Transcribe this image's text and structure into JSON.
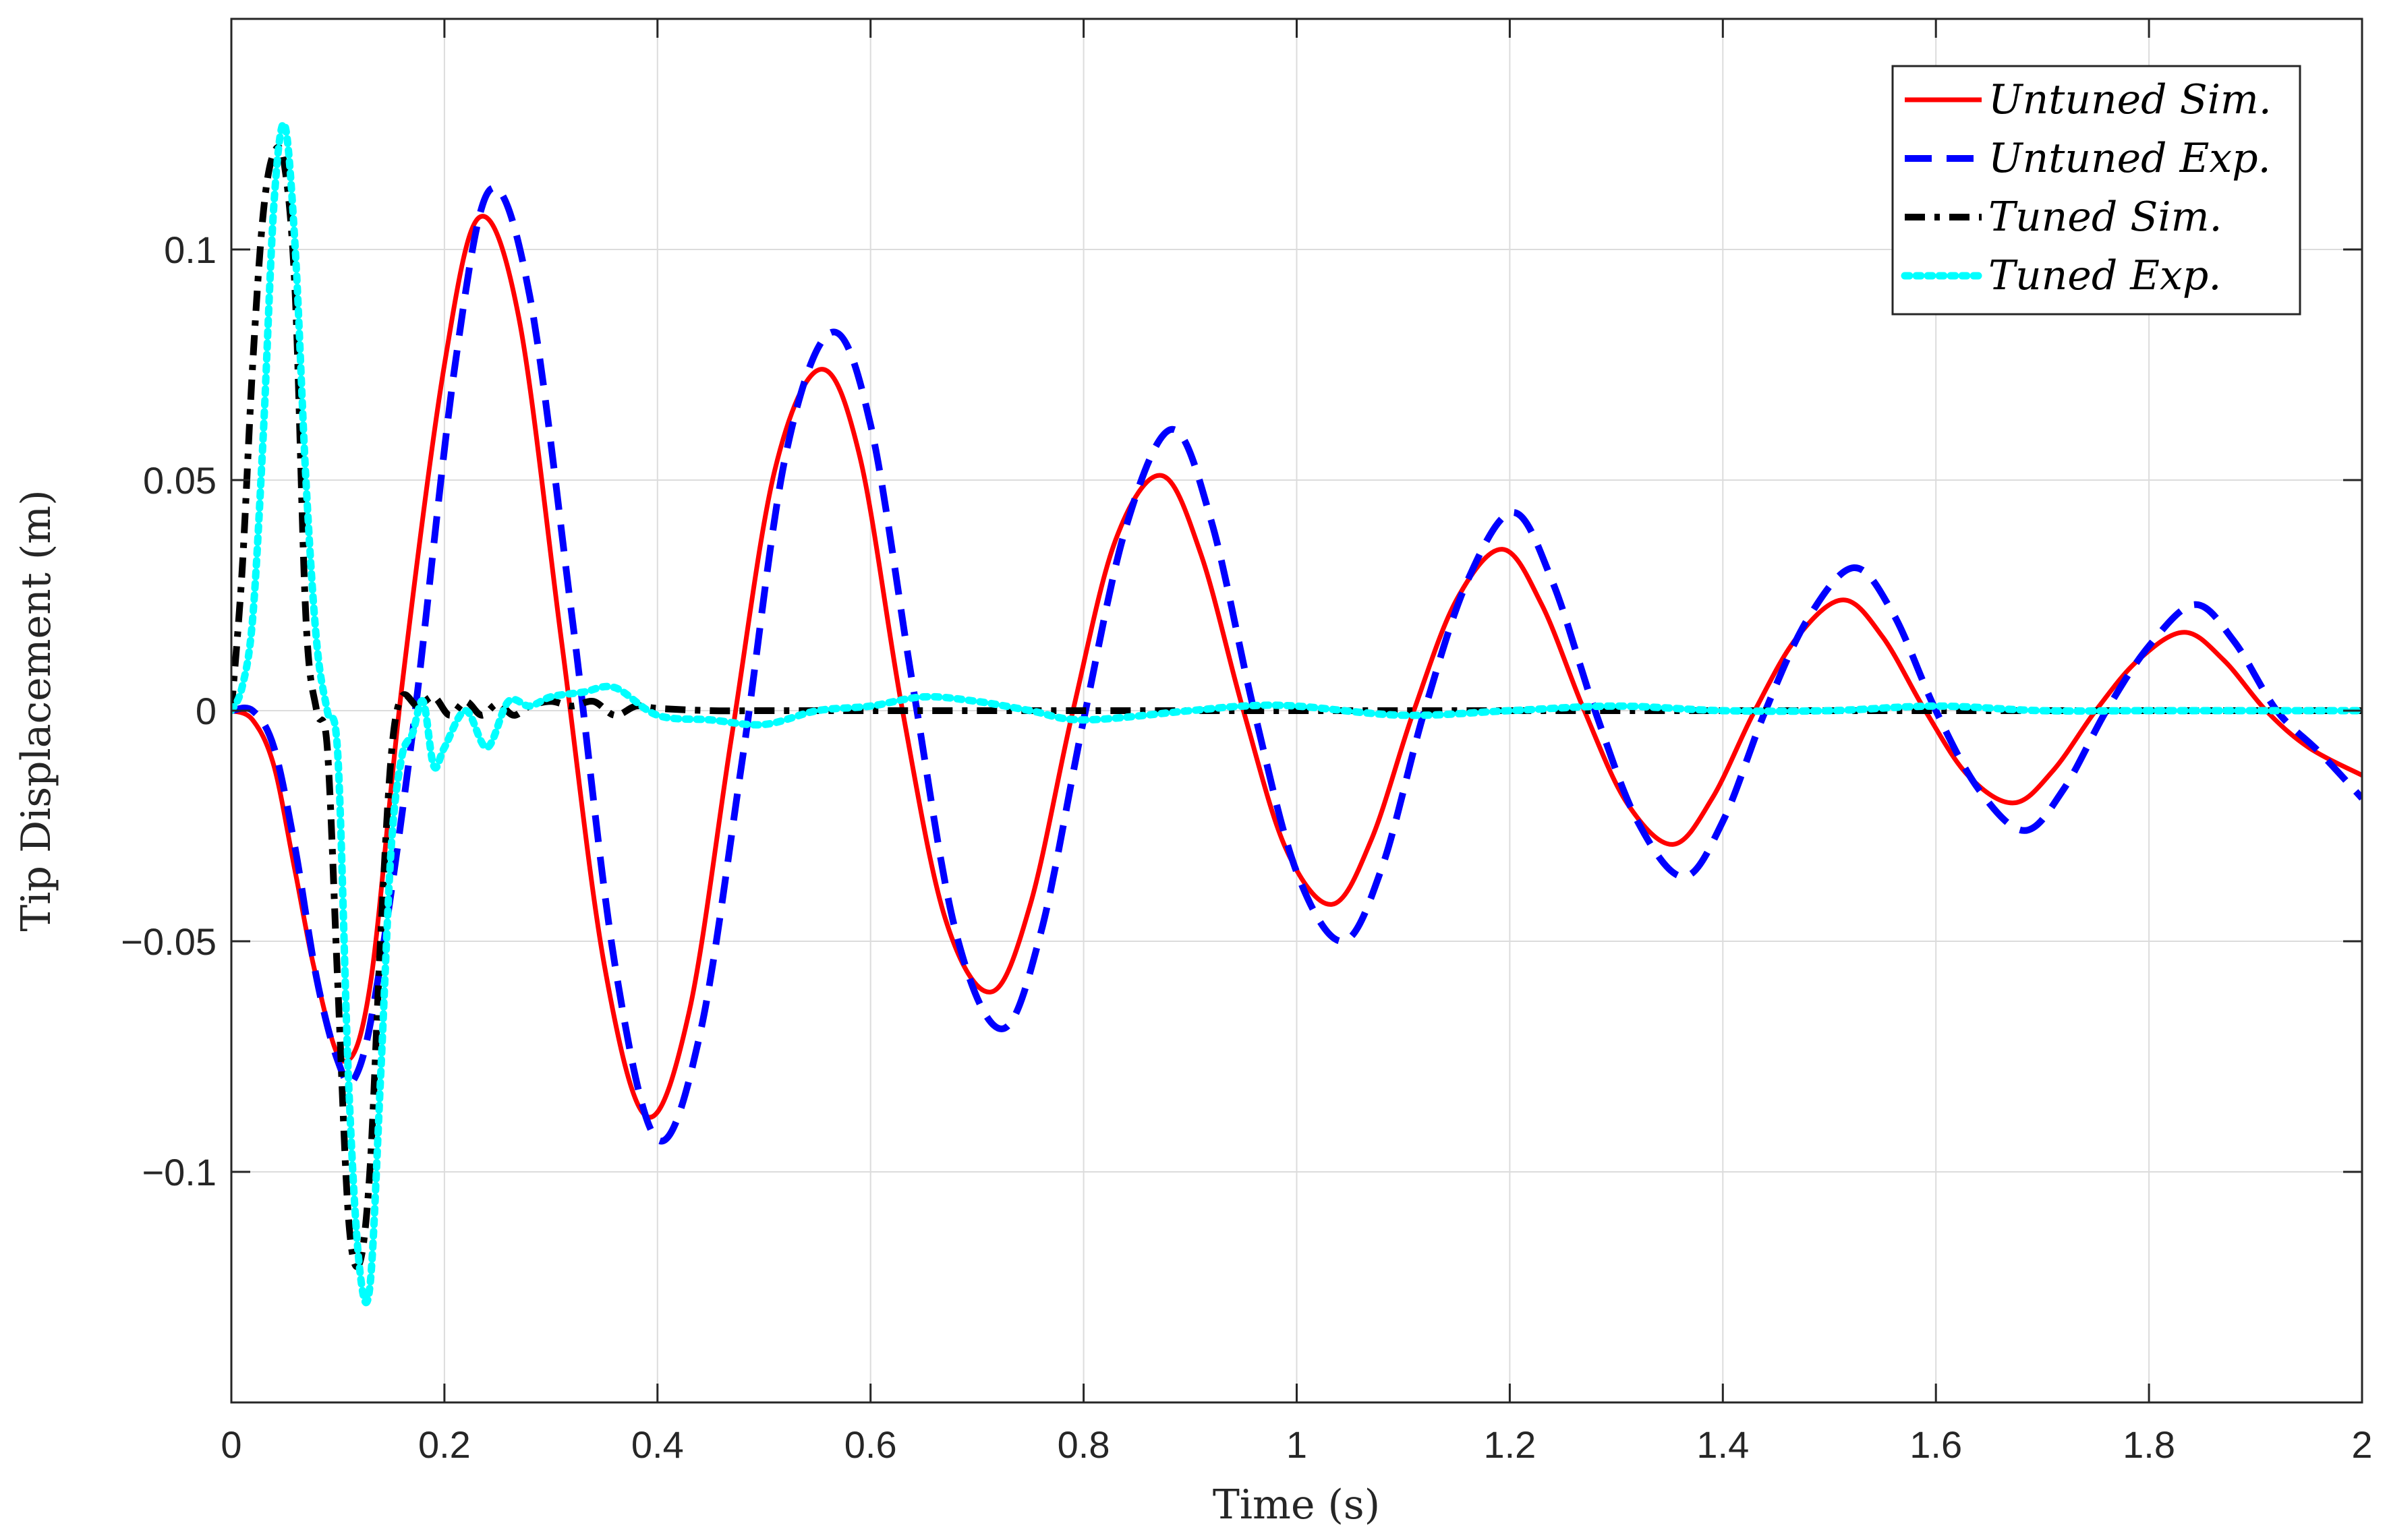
{
  "chart_data": {
    "type": "line",
    "xlabel": "Time (s)",
    "ylabel": "Tip Displacement (m)",
    "xlim": [
      0,
      2
    ],
    "ylim": [
      -0.15,
      0.15
    ],
    "grid": true,
    "legend_position": "top-right",
    "x_ticks": [
      0,
      0.2,
      0.4,
      0.6,
      0.8,
      1,
      1.2,
      1.4,
      1.6,
      1.8,
      2
    ],
    "x_tick_labels": [
      "0",
      "0.2",
      "0.4",
      "0.6",
      "0.8",
      "1",
      "1.2",
      "1.4",
      "1.6",
      "1.8",
      "2"
    ],
    "y_ticks": [
      -0.1,
      -0.05,
      0,
      0.05,
      0.1
    ],
    "y_tick_labels": [
      "−0.1",
      "−0.05",
      "0",
      "0.05",
      "0.1"
    ],
    "series": [
      {
        "name": "Untuned Sim.",
        "color": "#ff0000",
        "style": "solid",
        "x": [
          0,
          0.02,
          0.04,
          0.06,
          0.08,
          0.105,
          0.13,
          0.16,
          0.2,
          0.233,
          0.27,
          0.31,
          0.35,
          0.39,
          0.43,
          0.47,
          0.51,
          0.553,
          0.59,
          0.63,
          0.67,
          0.713,
          0.75,
          0.79,
          0.83,
          0.873,
          0.91,
          0.95,
          0.99,
          1.033,
          1.07,
          1.11,
          1.15,
          1.193,
          1.23,
          1.27,
          1.31,
          1.353,
          1.39,
          1.43,
          1.47,
          1.513,
          1.55,
          1.59,
          1.63,
          1.673,
          1.71,
          1.75,
          1.79,
          1.833,
          1.87,
          1.91,
          1.95,
          2.0
        ],
        "y": [
          0,
          -0.002,
          -0.012,
          -0.035,
          -0.058,
          -0.076,
          -0.06,
          0.005,
          0.075,
          0.107,
          0.085,
          0.015,
          -0.055,
          -0.088,
          -0.065,
          -0.005,
          0.052,
          0.074,
          0.055,
          0.0,
          -0.045,
          -0.061,
          -0.042,
          0.0,
          0.037,
          0.051,
          0.034,
          0.0,
          -0.03,
          -0.042,
          -0.028,
          0.0,
          0.024,
          0.035,
          0.023,
          0.0,
          -0.02,
          -0.029,
          -0.019,
          0.0,
          0.016,
          0.024,
          0.016,
          0.0,
          -0.014,
          -0.02,
          -0.013,
          0.0,
          0.011,
          0.017,
          0.011,
          0.0,
          -0.008,
          -0.014
        ]
      },
      {
        "name": "Untuned Exp.",
        "color": "#0000ff",
        "style": "dashed",
        "x": [
          0,
          0.02,
          0.04,
          0.06,
          0.08,
          0.1,
          0.115,
          0.135,
          0.17,
          0.21,
          0.243,
          0.28,
          0.32,
          0.36,
          0.4,
          0.44,
          0.48,
          0.52,
          0.563,
          0.6,
          0.64,
          0.68,
          0.723,
          0.76,
          0.8,
          0.84,
          0.883,
          0.92,
          0.96,
          1.0,
          1.043,
          1.08,
          1.12,
          1.16,
          1.203,
          1.24,
          1.28,
          1.32,
          1.363,
          1.4,
          1.44,
          1.48,
          1.523,
          1.56,
          1.6,
          1.64,
          1.683,
          1.72,
          1.76,
          1.8,
          1.843,
          1.88,
          1.92,
          1.96,
          2.0
        ],
        "y": [
          0,
          0.0,
          -0.008,
          -0.03,
          -0.058,
          -0.076,
          -0.08,
          -0.062,
          -0.005,
          0.075,
          0.113,
          0.09,
          0.02,
          -0.055,
          -0.093,
          -0.07,
          -0.01,
          0.055,
          0.082,
          0.062,
          0.005,
          -0.048,
          -0.069,
          -0.048,
          -0.002,
          0.04,
          0.061,
          0.041,
          0.0,
          -0.035,
          -0.05,
          -0.034,
          0.0,
          0.028,
          0.043,
          0.028,
          0.0,
          -0.024,
          -0.036,
          -0.024,
          0.0,
          0.02,
          0.031,
          0.021,
          0.0,
          -0.017,
          -0.026,
          -0.017,
          0.0,
          0.014,
          0.023,
          0.015,
          0.0,
          -0.009,
          -0.019
        ]
      },
      {
        "name": "Tuned Sim.",
        "color": "#000000",
        "style": "dashdot",
        "x": [
          0,
          0.01,
          0.02,
          0.03,
          0.04,
          0.05,
          0.06,
          0.07,
          0.08,
          0.09,
          0.1,
          0.11,
          0.12,
          0.13,
          0.14,
          0.15,
          0.16,
          0.175,
          0.19,
          0.205,
          0.22,
          0.235,
          0.25,
          0.265,
          0.28,
          0.3,
          0.32,
          0.34,
          0.36,
          0.38,
          0.4,
          0.45,
          0.5,
          0.55,
          0.6,
          0.7,
          0.8,
          0.9,
          1.0,
          1.2,
          1.4,
          1.6,
          1.8,
          2.0
        ],
        "y": [
          0,
          0.03,
          0.075,
          0.108,
          0.121,
          0.118,
          0.09,
          0.02,
          0.0,
          -0.008,
          -0.06,
          -0.11,
          -0.12,
          -0.1,
          -0.05,
          -0.01,
          0.003,
          0.001,
          0.003,
          -0.001,
          0.002,
          -0.001,
          0.0015,
          -0.001,
          0.001,
          0.002,
          0.001,
          0.002,
          -0.001,
          0.001,
          0.0005,
          0.0,
          0.0,
          0.0,
          0.0,
          0.0,
          0.0,
          0.0,
          0.0,
          0.0,
          0.0,
          0.0,
          0.0,
          0.0
        ]
      },
      {
        "name": "Tuned Exp.",
        "color": "#00ffff",
        "style": "dotted",
        "x": [
          0,
          0.01,
          0.02,
          0.03,
          0.04,
          0.05,
          0.06,
          0.07,
          0.08,
          0.09,
          0.1,
          0.11,
          0.12,
          0.13,
          0.14,
          0.15,
          0.16,
          0.17,
          0.18,
          0.19,
          0.2,
          0.22,
          0.24,
          0.26,
          0.28,
          0.3,
          0.33,
          0.36,
          0.4,
          0.45,
          0.5,
          0.55,
          0.6,
          0.65,
          0.7,
          0.75,
          0.8,
          0.9,
          0.95,
          1.0,
          1.1,
          1.2,
          1.3,
          1.4,
          1.5,
          1.6,
          1.7,
          1.8,
          1.9,
          2.0
        ],
        "y": [
          0,
          0.005,
          0.02,
          0.06,
          0.11,
          0.127,
          0.1,
          0.05,
          0.015,
          0.0,
          -0.01,
          -0.08,
          -0.12,
          -0.125,
          -0.08,
          -0.03,
          -0.01,
          -0.005,
          0.002,
          -0.012,
          -0.008,
          0.0,
          -0.008,
          0.002,
          0.001,
          0.003,
          0.004,
          0.005,
          -0.001,
          -0.002,
          -0.003,
          0.0,
          0.001,
          0.003,
          0.002,
          0.0,
          -0.002,
          0.0,
          0.001,
          0.001,
          -0.001,
          0.0,
          0.001,
          0.0,
          0.0,
          0.001,
          0.0,
          0.0,
          0.0,
          0.0
        ]
      }
    ]
  }
}
